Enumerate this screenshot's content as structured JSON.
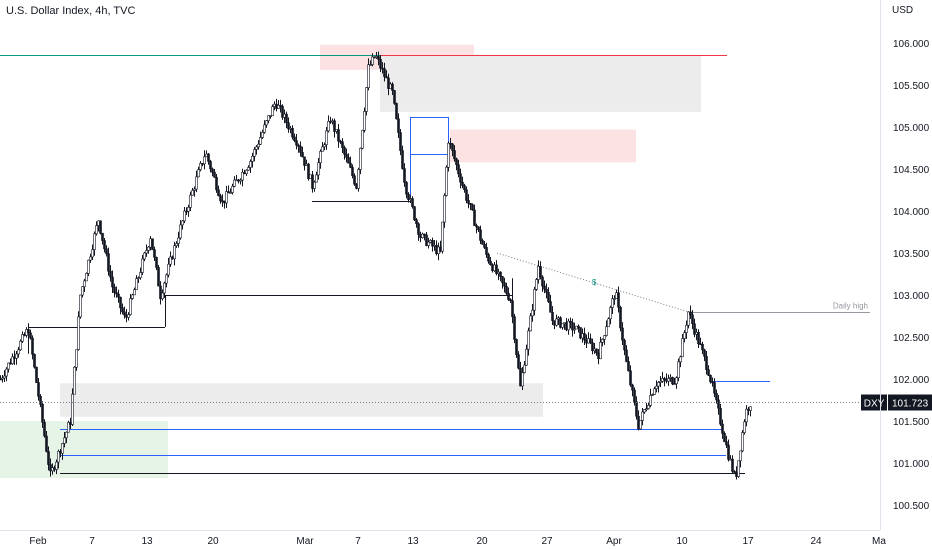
{
  "header": {
    "title": "U.S. Dollar Index, 4h, TVC",
    "currency": "USD"
  },
  "colors": {
    "bull": "#131722",
    "bear": "#131722",
    "resistance": "#f23645",
    "support": "#089981",
    "level_blue": "#2962ff",
    "zone_red": "#fde2e4",
    "zone_gray": "#ececec",
    "zone_green": "#e6f4e7",
    "axis_text": "#131722",
    "tag_bg": "#131722"
  },
  "chart_data": {
    "type": "candlestick",
    "title": "U.S. Dollar Index, 4h, TVC",
    "ylabel": "USD",
    "ylim": [
      100.35,
      106.3
    ],
    "price_axis_ticks": [
      "106.000",
      "105.500",
      "105.000",
      "104.500",
      "104.000",
      "103.500",
      "103.000",
      "102.500",
      "102.000",
      "101.500",
      "101.000",
      "100.500"
    ],
    "time_axis_ticks": [
      "Feb",
      "7",
      "13",
      "20",
      "Mar",
      "7",
      "13",
      "20",
      "27",
      "Apr",
      "10",
      "17",
      "24",
      "Ma"
    ],
    "path_keypoints": [
      {
        "t": 0,
        "p": 102.0
      },
      {
        "t": 28,
        "p": 102.6
      },
      {
        "t": 50,
        "p": 100.85
      },
      {
        "t": 70,
        "p": 101.5
      },
      {
        "t": 80,
        "p": 103.0
      },
      {
        "t": 98,
        "p": 103.9
      },
      {
        "t": 112,
        "p": 103.1
      },
      {
        "t": 125,
        "p": 102.7
      },
      {
        "t": 150,
        "p": 103.7
      },
      {
        "t": 160,
        "p": 103.0
      },
      {
        "t": 180,
        "p": 103.8
      },
      {
        "t": 205,
        "p": 104.7
      },
      {
        "t": 222,
        "p": 104.1
      },
      {
        "t": 250,
        "p": 104.6
      },
      {
        "t": 275,
        "p": 105.3
      },
      {
        "t": 298,
        "p": 104.8
      },
      {
        "t": 312,
        "p": 104.3
      },
      {
        "t": 330,
        "p": 105.1
      },
      {
        "t": 356,
        "p": 104.3
      },
      {
        "t": 368,
        "p": 105.7
      },
      {
        "t": 375,
        "p": 105.85
      },
      {
        "t": 392,
        "p": 105.4
      },
      {
        "t": 405,
        "p": 104.3
      },
      {
        "t": 420,
        "p": 103.7
      },
      {
        "t": 440,
        "p": 103.5
      },
      {
        "t": 448,
        "p": 104.85
      },
      {
        "t": 465,
        "p": 104.2
      },
      {
        "t": 485,
        "p": 103.5
      },
      {
        "t": 510,
        "p": 102.95
      },
      {
        "t": 520,
        "p": 101.9
      },
      {
        "t": 538,
        "p": 103.35
      },
      {
        "t": 552,
        "p": 102.7
      },
      {
        "t": 575,
        "p": 102.6
      },
      {
        "t": 598,
        "p": 102.3
      },
      {
        "t": 615,
        "p": 103.05
      },
      {
        "t": 625,
        "p": 102.25
      },
      {
        "t": 638,
        "p": 101.45
      },
      {
        "t": 655,
        "p": 101.95
      },
      {
        "t": 675,
        "p": 102.0
      },
      {
        "t": 688,
        "p": 102.8
      },
      {
        "t": 708,
        "p": 102.1
      },
      {
        "t": 728,
        "p": 101.1
      },
      {
        "t": 735,
        "p": 100.8
      },
      {
        "t": 745,
        "p": 101.6
      },
      {
        "t": 750,
        "p": 101.72
      }
    ],
    "last_price": {
      "symbol": "DXY",
      "value": "101.723"
    },
    "horizontal_levels": [
      {
        "name": "top-resistance",
        "price": 105.86,
        "color": "#f23645",
        "x0": 380,
        "x1": 727
      },
      {
        "name": "old-high-support",
        "price": 105.86,
        "color": "#089981",
        "x0": 0,
        "x1": 380
      },
      {
        "name": "blue-level-1",
        "price": 101.4,
        "color": "#2962ff",
        "x0": 60,
        "x1": 723
      },
      {
        "name": "blue-level-2",
        "price": 101.1,
        "color": "#2962ff",
        "x0": 60,
        "x1": 726
      },
      {
        "name": "low-line",
        "price": 100.88,
        "color": "#131722",
        "x0": 60,
        "x1": 745
      },
      {
        "name": "blue-level-3",
        "price": 101.98,
        "color": "#2962ff",
        "x0": 713,
        "x1": 770
      },
      {
        "name": "daily-high",
        "price": 102.8,
        "color": "#9598a1",
        "x0": 688,
        "x1": 870,
        "label": "Daily high"
      },
      {
        "name": "black-level-1",
        "price": 102.62,
        "color": "#131722",
        "x0": 28,
        "x1": 165
      },
      {
        "name": "black-level-2",
        "price": 103.0,
        "color": "#131722",
        "x0": 165,
        "x1": 512
      },
      {
        "name": "black-level-3",
        "price": 104.12,
        "color": "#131722",
        "x0": 312,
        "x1": 410
      },
      {
        "name": "blue-box-top",
        "price": 105.12,
        "color": "#2962ff",
        "x0": 410,
        "x1": 448
      },
      {
        "name": "blue-box-mid",
        "price": 104.68,
        "color": "#2962ff",
        "x0": 410,
        "x1": 448
      }
    ],
    "zones": [
      {
        "name": "supply-zone-top",
        "top": 105.98,
        "bottom": 105.68,
        "x0": 320,
        "x1": 474,
        "color": "#fde2e4"
      },
      {
        "name": "gray-zone-top",
        "top": 105.86,
        "bottom": 105.18,
        "x0": 380,
        "x1": 701,
        "color": "#ececec"
      },
      {
        "name": "supply-zone-mid",
        "top": 104.97,
        "bottom": 104.58,
        "x0": 450,
        "x1": 636,
        "color": "#fde2e4"
      },
      {
        "name": "gray-zone-bottom",
        "top": 101.95,
        "bottom": 101.55,
        "x0": 60,
        "x1": 543,
        "color": "#ececec"
      },
      {
        "name": "demand-zone",
        "top": 101.5,
        "bottom": 100.82,
        "x0": 0,
        "x1": 168,
        "color": "#e6f4e7"
      }
    ],
    "trendline": {
      "from": {
        "t": 497,
        "p": 103.5
      },
      "to": {
        "t": 688,
        "p": 102.8
      },
      "marker": "$"
    },
    "grid": false
  }
}
